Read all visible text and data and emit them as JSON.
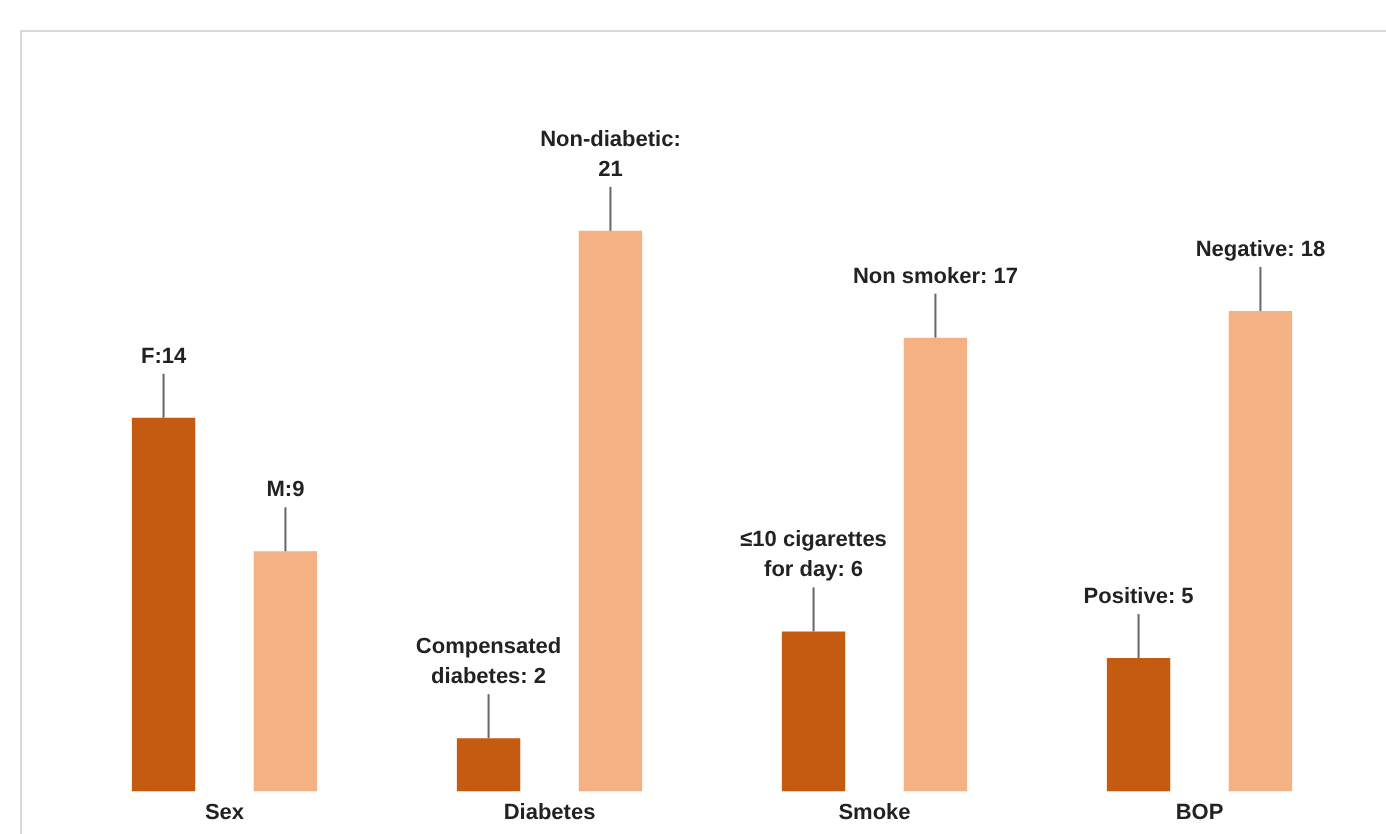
{
  "chart_data": {
    "type": "bar",
    "categories": [
      "Sex",
      "Diabetes",
      "Smoke",
      "BOP"
    ],
    "series": [
      {
        "color": "#c55a11",
        "values": [
          14,
          2,
          6,
          5
        ],
        "value_labels": [
          "F:14",
          "Compensated diabetes: 2",
          "≤10 cigarettes for day: 6",
          "Positive: 5"
        ]
      },
      {
        "color": "#f4b183",
        "values": [
          9,
          21,
          17,
          18
        ],
        "value_labels": [
          "M:9",
          "Non-diabetic: 21",
          "Non smoker: 17",
          "Negative: 18"
        ]
      }
    ],
    "tick_labels": "x",
    "grid": false,
    "legend": false
  }
}
